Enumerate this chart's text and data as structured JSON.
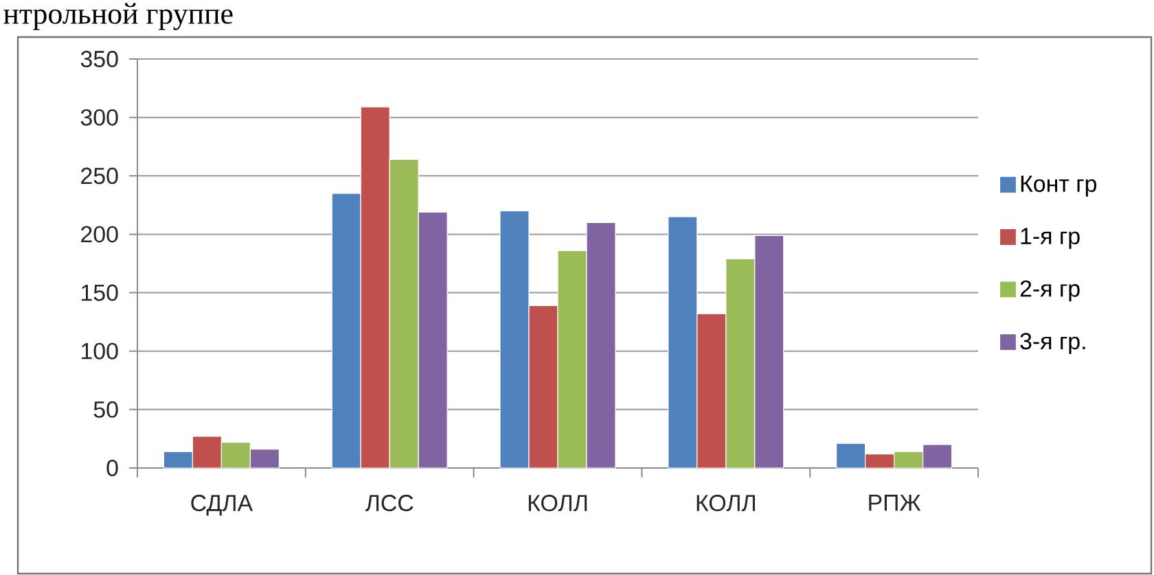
{
  "chart_data": {
    "type": "bar",
    "categories": [
      "СДЛА",
      "ЛСС",
      "КОЛЛ",
      "КОЛЛ",
      "РПЖ"
    ],
    "series": [
      {
        "name": "Конт гр",
        "color": "#4f81bd",
        "values": [
          14,
          235,
          220,
          215,
          21
        ]
      },
      {
        "name": "1-я гр",
        "color": "#c0504d",
        "values": [
          27,
          309,
          139,
          132,
          12
        ]
      },
      {
        "name": "2-я гр",
        "color": "#9bbb59",
        "values": [
          22,
          264,
          186,
          179,
          14
        ]
      },
      {
        "name": "3-я гр.",
        "color": "#8064a2",
        "values": [
          16,
          219,
          210,
          199,
          20
        ]
      }
    ],
    "ylim": [
      0,
      350
    ],
    "yticks": [
      0,
      50,
      100,
      150,
      200,
      250,
      300,
      350
    ],
    "grid": "y",
    "legend": "right",
    "annotations": [
      "нтрольной группе"
    ]
  }
}
